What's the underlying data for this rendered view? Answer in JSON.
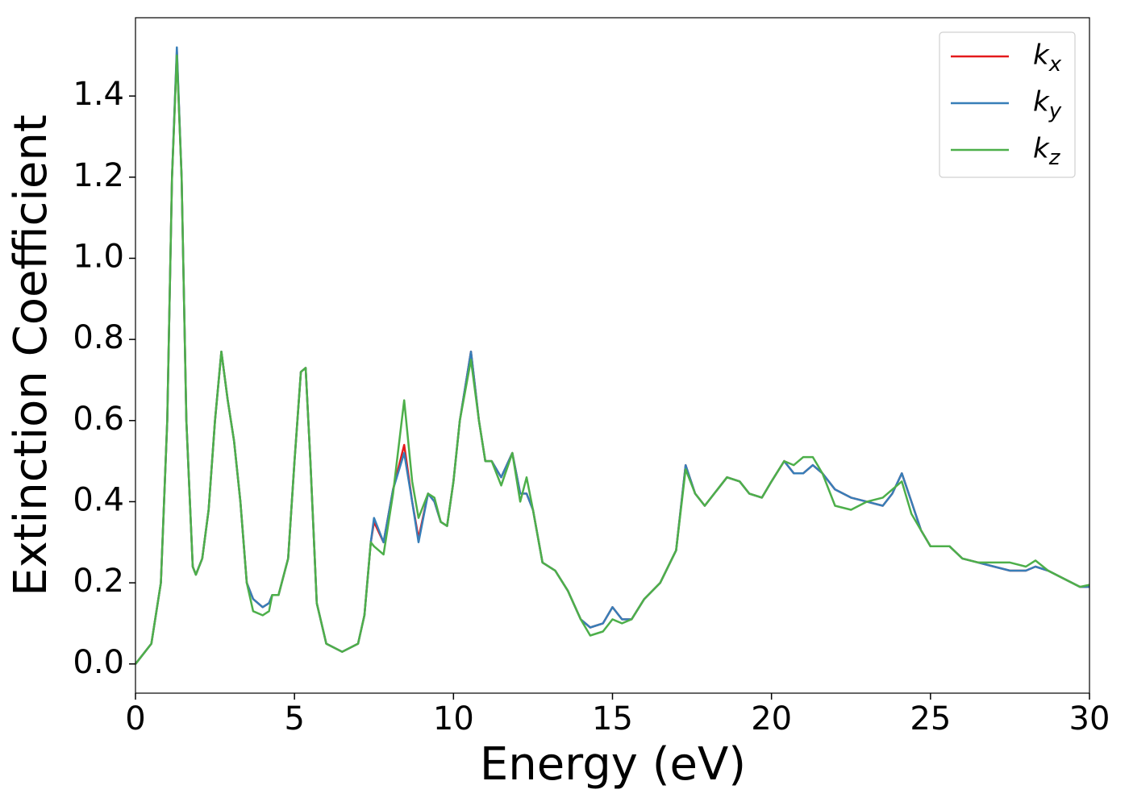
{
  "chart_data": {
    "type": "line",
    "xlabel": "Energy (eV)",
    "ylabel": "Extinction Coefficient",
    "x": [
      0,
      0.5,
      0.8,
      1.0,
      1.15,
      1.3,
      1.45,
      1.6,
      1.8,
      1.9,
      2.1,
      2.3,
      2.5,
      2.7,
      2.9,
      3.1,
      3.3,
      3.5,
      3.7,
      4.0,
      4.2,
      4.3,
      4.5,
      4.8,
      5.0,
      5.2,
      5.35,
      5.5,
      5.7,
      6.0,
      6.5,
      7.0,
      7.2,
      7.4,
      7.5,
      7.8,
      8.1,
      8.45,
      8.7,
      8.9,
      9.2,
      9.4,
      9.6,
      9.8,
      10.0,
      10.2,
      10.55,
      10.8,
      11.0,
      11.2,
      11.5,
      11.85,
      12.1,
      12.3,
      12.5,
      12.8,
      13.2,
      13.6,
      14.0,
      14.3,
      14.7,
      15.0,
      15.3,
      15.6,
      16.0,
      16.5,
      17.0,
      17.3,
      17.6,
      17.9,
      18.2,
      18.6,
      19.0,
      19.3,
      19.7,
      20.0,
      20.4,
      20.7,
      21.0,
      21.3,
      21.6,
      22.0,
      22.5,
      23.0,
      23.5,
      23.8,
      24.1,
      24.4,
      24.7,
      25.0,
      25.4,
      25.6,
      26.0,
      26.5,
      27.0,
      27.5,
      28.0,
      28.3,
      28.7,
      29.2,
      29.7,
      30.0
    ],
    "series": [
      {
        "name": "kx",
        "color": "#e41a1c",
        "values": [
          0,
          0.05,
          0.2,
          0.6,
          1.2,
          1.51,
          1.2,
          0.6,
          0.24,
          0.22,
          0.26,
          0.38,
          0.6,
          0.77,
          0.65,
          0.55,
          0.4,
          0.2,
          0.16,
          0.14,
          0.15,
          0.17,
          0.17,
          0.26,
          0.5,
          0.72,
          0.73,
          0.5,
          0.15,
          0.05,
          0.03,
          0.05,
          0.12,
          0.3,
          0.35,
          0.3,
          0.43,
          0.54,
          0.4,
          0.31,
          0.42,
          0.4,
          0.35,
          0.34,
          0.45,
          0.6,
          0.77,
          0.6,
          0.5,
          0.5,
          0.46,
          0.52,
          0.42,
          0.42,
          0.38,
          0.25,
          0.23,
          0.18,
          0.11,
          0.09,
          0.1,
          0.14,
          0.11,
          0.11,
          0.16,
          0.2,
          0.28,
          0.49,
          0.42,
          0.39,
          0.42,
          0.46,
          0.45,
          0.42,
          0.41,
          0.45,
          0.5,
          0.47,
          0.47,
          0.49,
          0.47,
          0.43,
          0.41,
          0.4,
          0.39,
          0.42,
          0.47,
          0.4,
          0.33,
          0.29,
          0.29,
          0.29,
          0.26,
          0.25,
          0.24,
          0.23,
          0.23,
          0.24,
          0.23,
          0.21,
          0.19,
          0.19
        ]
      },
      {
        "name": "ky",
        "color": "#377eb8",
        "values": [
          0,
          0.05,
          0.2,
          0.6,
          1.2,
          1.52,
          1.2,
          0.6,
          0.24,
          0.22,
          0.26,
          0.38,
          0.6,
          0.77,
          0.65,
          0.55,
          0.4,
          0.2,
          0.16,
          0.14,
          0.15,
          0.17,
          0.17,
          0.26,
          0.5,
          0.72,
          0.73,
          0.5,
          0.15,
          0.05,
          0.03,
          0.05,
          0.12,
          0.3,
          0.36,
          0.3,
          0.43,
          0.52,
          0.4,
          0.3,
          0.42,
          0.4,
          0.35,
          0.34,
          0.45,
          0.6,
          0.77,
          0.6,
          0.5,
          0.5,
          0.46,
          0.52,
          0.42,
          0.42,
          0.38,
          0.25,
          0.23,
          0.18,
          0.11,
          0.09,
          0.1,
          0.14,
          0.11,
          0.11,
          0.16,
          0.2,
          0.28,
          0.49,
          0.42,
          0.39,
          0.42,
          0.46,
          0.45,
          0.42,
          0.41,
          0.45,
          0.5,
          0.47,
          0.47,
          0.49,
          0.47,
          0.43,
          0.41,
          0.4,
          0.39,
          0.42,
          0.47,
          0.4,
          0.33,
          0.29,
          0.29,
          0.29,
          0.26,
          0.25,
          0.24,
          0.23,
          0.23,
          0.24,
          0.23,
          0.21,
          0.19,
          0.19
        ]
      },
      {
        "name": "kz",
        "color": "#4daf4a",
        "values": [
          0,
          0.05,
          0.2,
          0.6,
          1.2,
          1.5,
          1.2,
          0.6,
          0.24,
          0.22,
          0.26,
          0.38,
          0.6,
          0.77,
          0.65,
          0.55,
          0.4,
          0.2,
          0.13,
          0.12,
          0.13,
          0.17,
          0.17,
          0.26,
          0.5,
          0.72,
          0.73,
          0.5,
          0.15,
          0.05,
          0.03,
          0.05,
          0.12,
          0.3,
          0.29,
          0.27,
          0.42,
          0.65,
          0.45,
          0.36,
          0.42,
          0.41,
          0.35,
          0.34,
          0.45,
          0.6,
          0.75,
          0.6,
          0.5,
          0.5,
          0.44,
          0.52,
          0.4,
          0.46,
          0.38,
          0.25,
          0.23,
          0.18,
          0.11,
          0.07,
          0.08,
          0.11,
          0.1,
          0.11,
          0.16,
          0.2,
          0.28,
          0.48,
          0.42,
          0.39,
          0.42,
          0.46,
          0.45,
          0.42,
          0.41,
          0.45,
          0.5,
          0.49,
          0.51,
          0.51,
          0.47,
          0.39,
          0.38,
          0.4,
          0.41,
          0.43,
          0.45,
          0.37,
          0.33,
          0.29,
          0.29,
          0.29,
          0.26,
          0.25,
          0.25,
          0.25,
          0.24,
          0.255,
          0.23,
          0.21,
          0.19,
          0.195
        ]
      }
    ],
    "xlim": [
      0,
      30
    ],
    "xticks": [
      0,
      5,
      10,
      15,
      20,
      25,
      30
    ],
    "ylim": [
      -0.072,
      1.593
    ],
    "yticks": [
      {
        "value": 0,
        "label": "0.0"
      },
      0.2,
      0.4,
      0.6,
      0.8,
      {
        "value": 1,
        "label": "1.0"
      },
      1.2,
      1.4
    ],
    "grid": false,
    "legend": "upper right"
  }
}
